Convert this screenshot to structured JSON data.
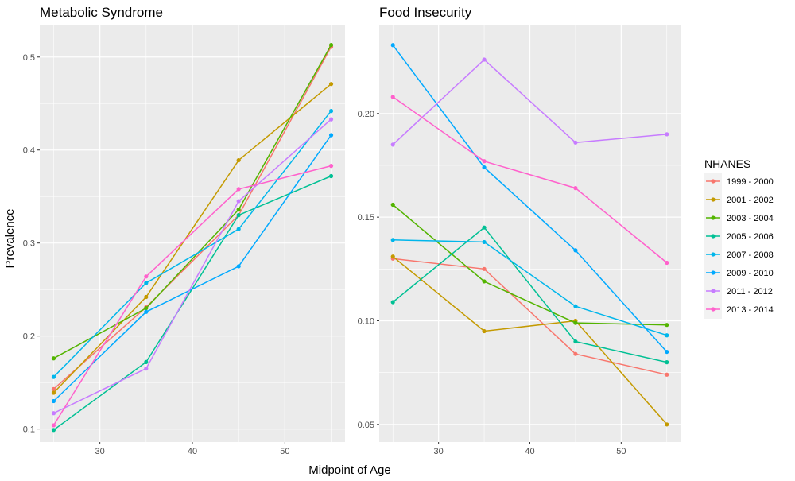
{
  "chart_data": {
    "type": "line",
    "xlabel": "Midpoint of Age",
    "ylabel": "Prevalence",
    "legend": {
      "title": "NHANES",
      "placement": "right",
      "entries": [
        "1999 - 2000",
        "2001 - 2002",
        "2003 - 2004",
        "2005 - 2006",
        "2007 - 2008",
        "2009 - 2010",
        "2011 - 2012",
        "2013 - 2014"
      ]
    },
    "colors": [
      "#F8766D",
      "#C49A00",
      "#53B400",
      "#00C094",
      "#00B6EB",
      "#A58AFF",
      "#FB61D7",
      "#00A9FF"
    ],
    "series_colors": [
      "#F8766D",
      "#C49A00",
      "#53B400",
      "#00C094",
      "#00B6EB",
      "#00A9FF",
      "#C77CFF",
      "#FF61CC"
    ],
    "panel_background": "#EBEBEB",
    "grid": true,
    "x": [
      25,
      35,
      45,
      55
    ],
    "panels": [
      {
        "title": "Metabolic Syndrome",
        "xlim": [
          23.5,
          56.5
        ],
        "ylim": [
          0.086,
          0.534
        ],
        "xticks": [
          30,
          40,
          50
        ],
        "xtick_labels": [
          "30",
          "40",
          "50"
        ],
        "yticks": [
          0.1,
          0.2,
          0.3,
          0.4,
          0.5
        ],
        "ytick_labels": [
          "0.1",
          "0.2",
          "0.3",
          "0.4",
          "0.5"
        ],
        "series": [
          {
            "name": "1999 - 2000",
            "values": [
              0.143,
              0.231,
              0.33,
              0.511
            ]
          },
          {
            "name": "2001 - 2002",
            "values": [
              0.139,
              0.242,
              0.389,
              0.471
            ]
          },
          {
            "name": "2003 - 2004",
            "values": [
              0.176,
              0.23,
              0.336,
              0.513
            ]
          },
          {
            "name": "2005 - 2006",
            "values": [
              0.099,
              0.172,
              0.33,
              0.372
            ]
          },
          {
            "name": "2007 - 2008",
            "values": [
              0.156,
              0.257,
              0.315,
              0.442
            ]
          },
          {
            "name": "2009 - 2010",
            "values": [
              0.13,
              0.226,
              0.275,
              0.416
            ]
          },
          {
            "name": "2011 - 2012",
            "values": [
              0.117,
              0.165,
              0.345,
              0.433
            ]
          },
          {
            "name": "2013 - 2014",
            "values": [
              0.104,
              0.264,
              0.358,
              0.383
            ]
          }
        ]
      },
      {
        "title": "Food Insecurity",
        "xlim": [
          23.5,
          56.5
        ],
        "ylim": [
          0.0415,
          0.2425
        ],
        "xticks": [
          30,
          40,
          50
        ],
        "xtick_labels": [
          "30",
          "40",
          "50"
        ],
        "yticks": [
          0.05,
          0.1,
          0.15,
          0.2
        ],
        "ytick_labels": [
          "0.05",
          "0.10",
          "0.15",
          "0.20"
        ],
        "series": [
          {
            "name": "1999 - 2000",
            "values": [
              0.13,
              0.125,
              0.084,
              0.074
            ]
          },
          {
            "name": "2001 - 2002",
            "values": [
              0.131,
              0.095,
              0.1,
              0.05
            ]
          },
          {
            "name": "2003 - 2004",
            "values": [
              0.156,
              0.119,
              0.099,
              0.098
            ]
          },
          {
            "name": "2005 - 2006",
            "values": [
              0.109,
              0.145,
              0.09,
              0.08
            ]
          },
          {
            "name": "2007 - 2008",
            "values": [
              0.139,
              0.138,
              0.107,
              0.093
            ]
          },
          {
            "name": "2009 - 2010",
            "values": [
              0.233,
              0.174,
              0.134,
              0.085
            ]
          },
          {
            "name": "2011 - 2012",
            "values": [
              0.185,
              0.226,
              0.186,
              0.19
            ]
          },
          {
            "name": "2013 - 2014",
            "values": [
              0.208,
              0.177,
              0.164,
              0.128
            ]
          }
        ]
      }
    ]
  }
}
